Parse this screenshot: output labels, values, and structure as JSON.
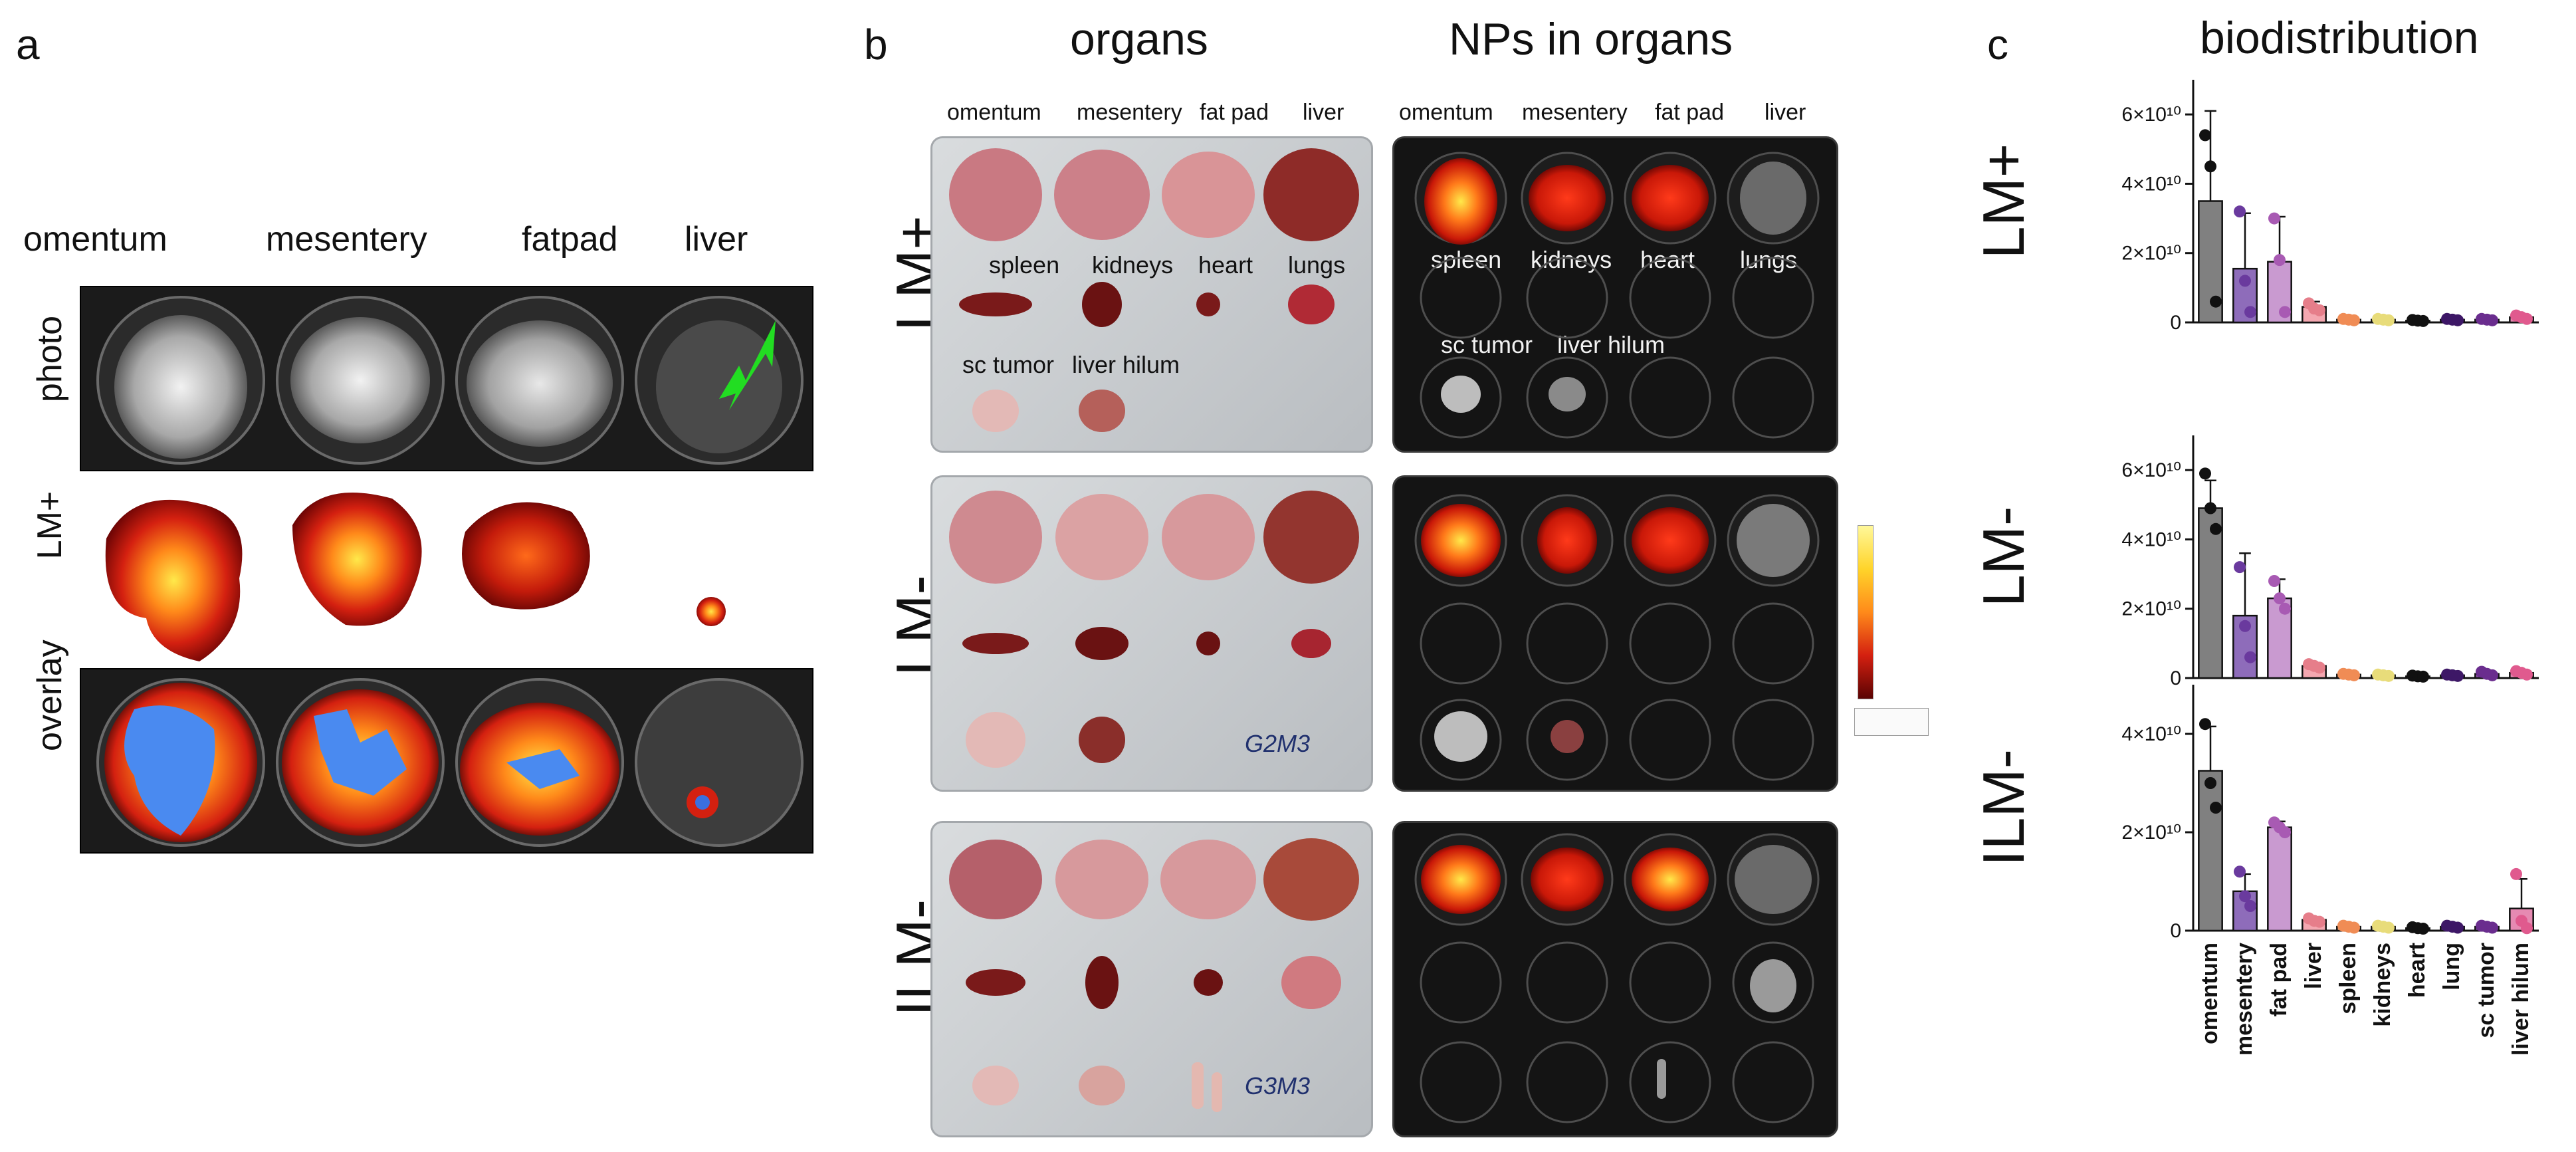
{
  "panel_a": {
    "letter": "a",
    "columns": [
      "omentum",
      "mesentery",
      "fatpad",
      "liver"
    ],
    "rows": [
      "photo",
      "LM+",
      "overlay"
    ],
    "arrow_color": "#22dd22"
  },
  "panel_b": {
    "letter": "b",
    "heading_left": "organs",
    "heading_right": "NPs in organs",
    "top_columns": [
      "omentum",
      "mesentery",
      "fat pad",
      "liver"
    ],
    "rows": [
      "LM+",
      "LM-",
      "ILM-"
    ],
    "well_labels_row2": [
      "spleen",
      "kidneys",
      "heart",
      "lungs"
    ],
    "well_labels_row3": [
      "sc tumor",
      "liver hilum"
    ],
    "plate_marks": [
      "G2M3",
      "G3M3"
    ]
  },
  "panel_c": {
    "letter": "c",
    "title": "biodistribution"
  },
  "chart_data": [
    {
      "type": "bar",
      "row_label": "LM+",
      "categories": [
        "omentum",
        "mesentery",
        "fat pad",
        "liver",
        "spleen",
        "kidneys",
        "heart",
        "lung",
        "sc tumor",
        "liver hilum"
      ],
      "values": [
        35000000000.0,
        15500000000.0,
        17500000000.0,
        4500000000.0,
        800000000.0,
        800000000.0,
        500000000.0,
        800000000.0,
        800000000.0,
        1500000000.0
      ],
      "errors": [
        26000000000.0,
        16000000000.0,
        13000000000.0,
        1500000000.0,
        300000000.0,
        300000000.0,
        200000000.0,
        300000000.0,
        300000000.0,
        500000000.0
      ],
      "points": [
        [
          54000000000.0,
          45000000000.0,
          6000000000.0
        ],
        [
          32000000000.0,
          12000000000.0,
          3000000000.0
        ],
        [
          30000000000.0,
          18000000000.0,
          3000000000.0
        ],
        [
          5500000000.0,
          4000000000.0,
          3500000000.0
        ],
        [
          1000000000.0,
          800000000.0,
          600000000.0
        ],
        [
          1000000000.0,
          800000000.0,
          600000000.0
        ],
        [
          700000000.0,
          500000000.0,
          400000000.0
        ],
        [
          1000000000.0,
          800000000.0,
          600000000.0
        ],
        [
          1000000000.0,
          800000000.0,
          600000000.0
        ],
        [
          2000000000.0,
          1500000000.0,
          1000000000.0
        ]
      ],
      "yticks": [
        "0",
        "2×10¹⁰",
        "4×10¹⁰",
        "6×10¹⁰"
      ],
      "ylim": [
        0,
        70000000000.0
      ]
    },
    {
      "type": "bar",
      "row_label": "LM-",
      "categories": [
        "omentum",
        "mesentery",
        "fat pad",
        "liver",
        "spleen",
        "kidneys",
        "heart",
        "lung",
        "sc tumor",
        "liver hilum"
      ],
      "values": [
        49000000000.0,
        18000000000.0,
        23000000000.0,
        3500000000.0,
        1000000000.0,
        800000000.0,
        500000000.0,
        800000000.0,
        1200000000.0,
        1500000000.0
      ],
      "errors": [
        8000000000.0,
        18000000000.0,
        5500000000.0,
        500000000.0,
        300000000.0,
        300000000.0,
        200000000.0,
        300000000.0,
        500000000.0,
        500000000.0
      ],
      "points": [
        [
          59000000000.0,
          49000000000.0,
          43000000000.0
        ],
        [
          32000000000.0,
          15000000000.0,
          6000000000.0
        ],
        [
          28000000000.0,
          23000000000.0,
          20000000000.0
        ],
        [
          4000000000.0,
          3500000000.0,
          3000000000.0
        ],
        [
          1200000000.0,
          1000000000.0,
          800000000.0
        ],
        [
          1000000000.0,
          800000000.0,
          600000000.0
        ],
        [
          700000000.0,
          500000000.0,
          400000000.0
        ],
        [
          1000000000.0,
          800000000.0,
          600000000.0
        ],
        [
          1800000000.0,
          1200000000.0,
          800000000.0
        ],
        [
          2000000000.0,
          1500000000.0,
          1000000000.0
        ]
      ],
      "yticks": [
        "0",
        "2×10¹⁰",
        "4×10¹⁰",
        "6×10¹⁰"
      ],
      "ylim": [
        0,
        70000000000.0
      ]
    },
    {
      "type": "bar",
      "row_label": "ILM-",
      "categories": [
        "omentum",
        "mesentery",
        "fat pad",
        "liver",
        "spleen",
        "kidneys",
        "heart",
        "lung",
        "sc tumor",
        "liver hilum"
      ],
      "values": [
        32500000000.0,
        8000000000.0,
        21000000000.0,
        2200000000.0,
        800000000.0,
        800000000.0,
        500000000.0,
        800000000.0,
        800000000.0,
        4500000000.0
      ],
      "errors": [
        9000000000.0,
        3500000000.0,
        1200000000.0,
        500000000.0,
        200000000.0,
        200000000.0,
        200000000.0,
        200000000.0,
        200000000.0,
        6000000000.0
      ],
      "points": [
        [
          42000000000.0,
          30000000000.0,
          25000000000.0
        ],
        [
          12000000000.0,
          7000000000.0,
          5000000000.0
        ],
        [
          22000000000.0,
          21000000000.0,
          20000000000.0
        ],
        [
          2500000000.0,
          2000000000.0,
          1800000000.0
        ],
        [
          1000000000.0,
          800000000.0,
          600000000.0
        ],
        [
          1000000000.0,
          800000000.0,
          600000000.0
        ],
        [
          700000000.0,
          500000000.0,
          400000000.0
        ],
        [
          1000000000.0,
          800000000.0,
          600000000.0
        ],
        [
          1000000000.0,
          800000000.0,
          600000000.0
        ],
        [
          11500000000.0,
          2000000000.0,
          500000000.0
        ]
      ],
      "yticks": [
        "0",
        "2×10¹⁰",
        "4×10¹⁰"
      ],
      "ylim": [
        0,
        50000000000.0
      ]
    }
  ],
  "bar_colors": [
    "#808080",
    "#8e6cba",
    "#c99ad0",
    "#f4a7b0",
    "#f7b287",
    "#f3edb5",
    "#222222",
    "#5a2d8a",
    "#8a4da8",
    "#e68ab2"
  ],
  "point_colors": [
    "#111111",
    "#6a3a9e",
    "#a85ab3",
    "#e67e8a",
    "#f08c55",
    "#e8dc7a",
    "#111111",
    "#3d1766",
    "#6a2d8e",
    "#e05a8e"
  ]
}
